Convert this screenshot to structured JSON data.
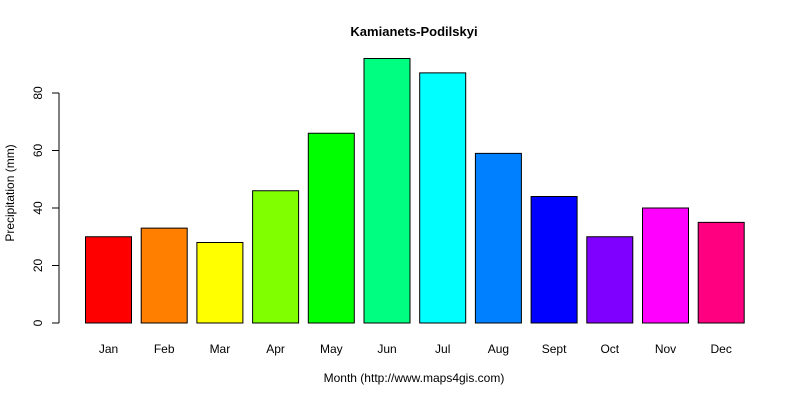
{
  "chart_data": {
    "type": "bar",
    "title": "Kamianets-Podilskyi",
    "xlabel": "Month (http://www.maps4gis.com)",
    "ylabel": "Precipitation (mm)",
    "categories": [
      "Jan",
      "Feb",
      "Mar",
      "Apr",
      "May",
      "Jun",
      "Jul",
      "Aug",
      "Sept",
      "Oct",
      "Nov",
      "Dec"
    ],
    "values": [
      30,
      33,
      28,
      46,
      66,
      92,
      87,
      59,
      44,
      30,
      40,
      35
    ],
    "colors": [
      "#FF0000",
      "#FF8000",
      "#FFFF00",
      "#80FF00",
      "#00FF00",
      "#00FF80",
      "#00FFFF",
      "#0080FF",
      "#0000FF",
      "#8000FF",
      "#FF00FF",
      "#FF0080"
    ],
    "yticks": [
      0,
      20,
      40,
      60,
      80
    ],
    "ylim": [
      0,
      92
    ],
    "grid": false,
    "legend": "none"
  }
}
